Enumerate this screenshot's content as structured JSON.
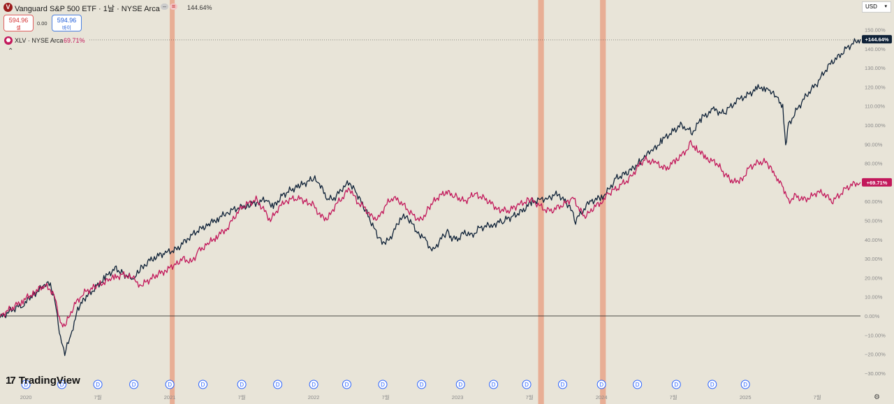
{
  "header": {
    "title": "Vanguard S&P 500 ETF · 1날 · NYSE Arca",
    "logo_letter": "V",
    "change_pct": "144.64%",
    "sell_price": "594.96",
    "sell_label": "셀",
    "spread": "0.00",
    "buy_price": "594.96",
    "buy_label": "바이",
    "compare_symbol": "XLV · NYSE Arca",
    "compare_pct": "69.71%",
    "currency": "USD"
  },
  "branding": {
    "name": "TradingView"
  },
  "colors": {
    "background": "#e8e4d8",
    "voo": "#0f2238",
    "xlv": "#c2185b",
    "highlight_band": "#e8a58a",
    "dividend_marker": "#2962ff"
  },
  "chart_data": {
    "type": "line",
    "title": "Vanguard S&P 500 ETF · 1날 · NYSE Arca",
    "xlabel": "",
    "ylabel": "",
    "ylim": [
      -32,
      152
    ],
    "grid": false,
    "y_ticks": [
      -30,
      -20,
      -10,
      0,
      10,
      20,
      30,
      40,
      50,
      60,
      70,
      80,
      90,
      100,
      110,
      120,
      130,
      140,
      150
    ],
    "y_tick_labels": [
      "−30.00%",
      "−20.00%",
      "−10.00%",
      "0.00%",
      "10.00%",
      "20.00%",
      "30.00%",
      "40.00%",
      "50.00%",
      "60.00%",
      "70.00%",
      "80.00%",
      "90.00%",
      "100.00%",
      "110.00%",
      "120.00%",
      "130.00%",
      "140.00%",
      "150.00%"
    ],
    "x_ticks": [
      2020.0,
      2020.5,
      2021.0,
      2021.5,
      2022.0,
      2022.5,
      2023.0,
      2023.5,
      2024.0,
      2024.5,
      2025.0,
      2025.5
    ],
    "x_tick_labels": [
      "2020",
      "7월",
      "2021",
      "7월",
      "2022",
      "7월",
      "2023",
      "7월",
      "2024",
      "7월",
      "2025",
      "7월"
    ],
    "x_range": [
      2019.82,
      2025.8
    ],
    "series": [
      {
        "name": "Vanguard S&P 500 ETF",
        "color": "#0f2238",
        "last_label": "+144.64%",
        "x": [
          2019.82,
          2019.9,
          2019.98,
          2020.05,
          2020.13,
          2020.17,
          2020.21,
          2020.24,
          2020.27,
          2020.32,
          2020.36,
          2020.42,
          2020.5,
          2020.55,
          2020.62,
          2020.68,
          2020.75,
          2020.8,
          2020.84,
          2020.9,
          2020.97,
          2021.05,
          2021.13,
          2021.2,
          2021.27,
          2021.33,
          2021.4,
          2021.45,
          2021.5,
          2021.55,
          2021.62,
          2021.68,
          2021.72,
          2021.78,
          2021.84,
          2021.9,
          2022.0,
          2022.04,
          2022.1,
          2022.15,
          2022.2,
          2022.25,
          2022.3,
          2022.37,
          2022.45,
          2022.5,
          2022.55,
          2022.6,
          2022.65,
          2022.72,
          2022.75,
          2022.78,
          2022.83,
          2022.88,
          2022.93,
          2022.96,
          2023.0,
          2023.05,
          2023.1,
          2023.15,
          2023.2,
          2023.25,
          2023.32,
          2023.38,
          2023.45,
          2023.52,
          2023.58,
          2023.63,
          2023.7,
          2023.78,
          2023.82,
          2023.87,
          2023.92,
          2024.0,
          2024.05,
          2024.1,
          2024.2,
          2024.27,
          2024.3,
          2024.35,
          2024.42,
          2024.5,
          2024.55,
          2024.6,
          2024.63,
          2024.7,
          2024.78,
          2024.85,
          2024.9,
          2024.95,
          2025.02,
          2025.08,
          2025.13,
          2025.17,
          2025.22,
          2025.26,
          2025.28,
          2025.3,
          2025.35,
          2025.4,
          2025.45,
          2025.5,
          2025.55,
          2025.6,
          2025.65,
          2025.7,
          2025.75,
          2025.8
        ],
        "y": [
          -1,
          3,
          6,
          11,
          16,
          17,
          5,
          -12,
          -20,
          -8,
          4,
          10,
          16,
          20,
          25,
          22,
          19,
          25,
          28,
          31,
          33,
          35,
          41,
          45,
          48,
          51,
          54,
          56,
          57,
          58,
          60,
          61,
          57,
          63,
          66,
          68,
          72,
          69,
          61,
          62,
          67,
          70,
          64,
          54,
          41,
          38,
          43,
          51,
          52,
          44,
          42,
          39,
          34,
          40,
          44,
          41,
          40,
          44,
          42,
          46,
          47,
          48,
          50,
          52,
          55,
          60,
          61,
          62,
          64,
          57,
          50,
          55,
          60,
          62,
          66,
          72,
          76,
          81,
          84,
          86,
          92,
          97,
          100,
          98,
          96,
          104,
          108,
          106,
          110,
          113,
          116,
          119,
          120,
          118,
          114,
          109,
          90,
          100,
          107,
          113,
          118,
          122,
          128,
          133,
          136,
          140,
          143,
          145
        ]
      },
      {
        "name": "XLV",
        "color": "#c2185b",
        "last_label": "+69.71%",
        "x": [
          2019.82,
          2019.9,
          2019.98,
          2020.05,
          2020.13,
          2020.17,
          2020.21,
          2020.24,
          2020.28,
          2020.33,
          2020.4,
          2020.5,
          2020.58,
          2020.62,
          2020.68,
          2020.75,
          2020.8,
          2020.86,
          2020.92,
          2020.98,
          2021.05,
          2021.1,
          2021.15,
          2021.2,
          2021.27,
          2021.33,
          2021.4,
          2021.45,
          2021.5,
          2021.55,
          2021.6,
          2021.65,
          2021.7,
          2021.75,
          2021.8,
          2021.88,
          2021.95,
          2022.0,
          2022.05,
          2022.1,
          2022.15,
          2022.2,
          2022.25,
          2022.3,
          2022.35,
          2022.4,
          2022.45,
          2022.5,
          2022.55,
          2022.6,
          2022.65,
          2022.7,
          2022.75,
          2022.8,
          2022.86,
          2022.92,
          2022.98,
          2023.05,
          2023.12,
          2023.2,
          2023.28,
          2023.35,
          2023.42,
          2023.5,
          2023.55,
          2023.6,
          2023.65,
          2023.7,
          2023.75,
          2023.8,
          2023.84,
          2023.88,
          2023.92,
          2024.0,
          2024.05,
          2024.12,
          2024.2,
          2024.25,
          2024.3,
          2024.38,
          2024.45,
          2024.52,
          2024.57,
          2024.62,
          2024.66,
          2024.72,
          2024.8,
          2024.86,
          2024.92,
          2024.98,
          2025.03,
          2025.08,
          2025.13,
          2025.18,
          2025.22,
          2025.25,
          2025.27,
          2025.3,
          2025.35,
          2025.4,
          2025.45,
          2025.5,
          2025.55,
          2025.6,
          2025.65,
          2025.7,
          2025.75,
          2025.8
        ],
        "y": [
          0,
          4,
          8,
          12,
          16,
          14,
          8,
          -5,
          -4,
          5,
          12,
          16,
          19,
          20,
          22,
          19,
          16,
          19,
          22,
          24,
          28,
          30,
          28,
          34,
          38,
          42,
          46,
          52,
          57,
          59,
          61,
          56,
          50,
          56,
          60,
          62,
          60,
          58,
          52,
          51,
          58,
          62,
          67,
          60,
          57,
          52,
          51,
          58,
          62,
          60,
          56,
          52,
          50,
          57,
          62,
          65,
          63,
          60,
          64,
          61,
          56,
          55,
          58,
          61,
          59,
          56,
          55,
          57,
          59,
          62,
          57,
          52,
          55,
          60,
          64,
          68,
          72,
          78,
          82,
          80,
          77,
          82,
          85,
          90,
          88,
          83,
          80,
          74,
          70,
          72,
          78,
          80,
          81,
          78,
          72,
          70,
          66,
          60,
          63,
          61,
          62,
          65,
          64,
          60,
          63,
          67,
          69,
          70
        ]
      }
    ],
    "highlight_bands": [
      [
        2021.0,
        2021.03
      ],
      [
        2023.56,
        2023.6
      ],
      [
        2023.99,
        2024.03
      ]
    ],
    "dividend_markers": {
      "label": "D",
      "x": [
        2020.0,
        2020.25,
        2020.5,
        2020.75,
        2021.0,
        2021.23,
        2021.5,
        2021.75,
        2022.0,
        2022.23,
        2022.48,
        2022.75,
        2023.02,
        2023.25,
        2023.48,
        2023.73,
        2024.0,
        2024.25,
        2024.52,
        2024.77,
        2025.0
      ]
    }
  }
}
